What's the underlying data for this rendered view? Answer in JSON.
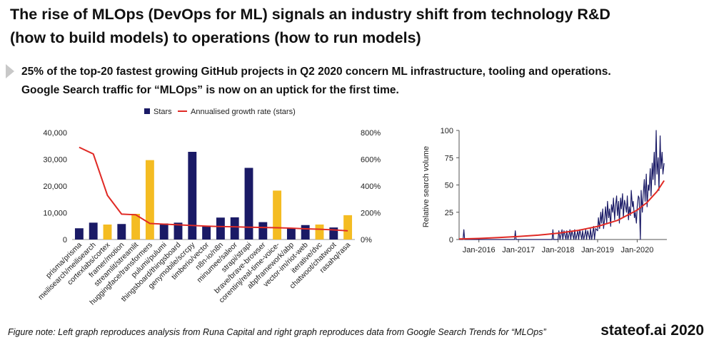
{
  "title": {
    "line1": "The rise of MLOps (DevOps for ML) signals an industry shift from technology R&D",
    "line2": "(how to build models) to operations (how to run models)"
  },
  "bullet": {
    "line1": "25% of the top-20 fastest growing GitHub projects in Q2 2020 concern ML infrastructure, tooling and operations.",
    "line2": "Google Search traffic for “MLOps” is now on an uptick for the first time."
  },
  "footnote": "Figure note: Left graph reproduces analysis from Runa Capital and right graph reproduces data from Google Search Trends for “MLOps”",
  "brand": "stateof.ai 2020",
  "colors": {
    "navy": "#1a1a66",
    "gold": "#f4bc22",
    "red": "#e02a25",
    "axis": "#999999",
    "text": "#222222"
  },
  "chart_data": [
    {
      "type": "bar",
      "title": "",
      "legend": {
        "position": "top",
        "stars_label": "Stars",
        "growth_label": "Annualised growth rate (stars)"
      },
      "categories": [
        "prisma/prisma",
        "meilisearch/meilisearch",
        "cortexlabs/cortex",
        "framer/motion",
        "streamlit/streamlit",
        "huggingface/transformers",
        "pulumi/pulumi",
        "thingsboard/thingsboard",
        "genymobile/scrcpy",
        "timberio/vector",
        "n8n-io/n8n",
        "minumee/saleor",
        "strapi/strapi",
        "brave/brave-browser",
        "corentinj/real-time-voice-",
        "abpframework/abp",
        "vector-im/riot-web",
        "iterative/dvc",
        "chatwoot/chatwoot",
        "rasahq/rasa"
      ],
      "series": [
        {
          "name": "Stars",
          "axis": "left",
          "values": [
            4200,
            6300,
            5600,
            5800,
            9600,
            29700,
            6000,
            6300,
            32800,
            4800,
            8200,
            8300,
            26800,
            6500,
            18300,
            4200,
            5400,
            5600,
            4500,
            9100
          ],
          "ml_related": [
            false,
            false,
            true,
            false,
            true,
            true,
            false,
            false,
            false,
            false,
            false,
            false,
            false,
            false,
            true,
            false,
            false,
            true,
            false,
            true
          ]
        },
        {
          "name": "Annualised growth rate (stars)",
          "axis": "right",
          "values": [
            690,
            640,
            330,
            190,
            185,
            120,
            115,
            110,
            105,
            100,
            97,
            95,
            92,
            90,
            88,
            85,
            80,
            77,
            72,
            65
          ]
        }
      ],
      "ylim_left": [
        0,
        40000
      ],
      "yticks_left": [
        0,
        10000,
        20000,
        30000,
        40000
      ],
      "yticks_left_labels": [
        "0",
        "10,000",
        "20,000",
        "30,000",
        "40,000"
      ],
      "ylim_right": [
        0,
        800
      ],
      "yticks_right": [
        0,
        200,
        400,
        600,
        800
      ],
      "yticks_right_labels": [
        "0%",
        "200%",
        "400%",
        "600%",
        "800%"
      ],
      "xlabel": "",
      "ylabel": "",
      "grid": false
    },
    {
      "type": "line",
      "title": "",
      "ylabel": "Relative search volume",
      "xlabel": "",
      "ylim": [
        0,
        100
      ],
      "yticks": [
        0,
        25,
        50,
        75,
        100
      ],
      "xlim": [
        2015.5,
        2020.75
      ],
      "xticks": [
        2016,
        2017,
        2018,
        2019,
        2020
      ],
      "xtick_labels": [
        "Jan-2016",
        "Jan-2017",
        "Jan-2018",
        "Jan-2019",
        "Jan-2020"
      ],
      "series": [
        {
          "name": "Search volume",
          "x": [
            2015.5,
            2015.6,
            2015.62,
            2015.64,
            2015.7,
            2016.0,
            2016.5,
            2016.9,
            2016.92,
            2016.94,
            2017.3,
            2017.85,
            2017.87,
            2017.89,
            2018.0,
            2018.02,
            2018.05,
            2018.1,
            2018.12,
            2018.15,
            2018.2,
            2018.22,
            2018.25,
            2018.3,
            2018.32,
            2018.35,
            2018.4,
            2018.42,
            2018.45,
            2018.5,
            2018.52,
            2018.55,
            2018.6,
            2018.62,
            2018.65,
            2018.7,
            2018.72,
            2018.75,
            2018.8,
            2018.82,
            2018.85,
            2018.9,
            2018.92,
            2018.95,
            2019.0,
            2019.02,
            2019.05,
            2019.08,
            2019.1,
            2019.13,
            2019.15,
            2019.18,
            2019.2,
            2019.23,
            2019.25,
            2019.28,
            2019.3,
            2019.33,
            2019.35,
            2019.38,
            2019.4,
            2019.43,
            2019.45,
            2019.48,
            2019.5,
            2019.53,
            2019.55,
            2019.58,
            2019.6,
            2019.63,
            2019.65,
            2019.68,
            2019.7,
            2019.73,
            2019.75,
            2019.78,
            2019.8,
            2019.83,
            2019.85,
            2019.88,
            2019.9,
            2019.93,
            2019.95,
            2019.98,
            2020.0,
            2020.03,
            2020.05,
            2020.08,
            2020.1,
            2020.13,
            2020.15,
            2020.18,
            2020.2,
            2020.23,
            2020.25,
            2020.28,
            2020.3,
            2020.33,
            2020.35,
            2020.38,
            2020.4,
            2020.43,
            2020.45,
            2020.48,
            2020.5,
            2020.53,
            2020.55,
            2020.58,
            2020.6,
            2020.63,
            2020.65,
            2020.68
          ],
          "y": [
            0,
            0,
            9,
            0,
            0,
            0,
            0,
            0,
            8,
            0,
            0,
            0,
            9,
            0,
            0,
            8,
            0,
            9,
            0,
            8,
            0,
            8,
            0,
            9,
            0,
            8,
            0,
            9,
            0,
            8,
            0,
            9,
            0,
            8,
            0,
            9,
            0,
            8,
            0,
            10,
            0,
            12,
            0,
            10,
            8,
            20,
            10,
            25,
            15,
            28,
            10,
            20,
            30,
            15,
            35,
            20,
            28,
            12,
            32,
            25,
            38,
            18,
            30,
            40,
            22,
            35,
            15,
            38,
            28,
            42,
            20,
            36,
            32,
            25,
            40,
            18,
            30,
            22,
            45,
            30,
            35,
            20,
            25,
            15,
            30,
            40,
            38,
            0,
            45,
            25,
            40,
            55,
            35,
            60,
            30,
            50,
            45,
            65,
            40,
            70,
            55,
            80,
            50,
            100,
            60,
            75,
            45,
            95,
            65,
            80,
            60,
            70
          ]
        },
        {
          "name": "Trend",
          "x": [
            2015.5,
            2016.0,
            2016.5,
            2017.0,
            2017.5,
            2018.0,
            2018.5,
            2019.0,
            2019.5,
            2020.0,
            2020.25,
            2020.5,
            2020.68
          ],
          "y": [
            0.5,
            1.0,
            1.8,
            2.8,
            4.0,
            5.8,
            8.3,
            12.0,
            17.5,
            27.0,
            34.0,
            44.0,
            54.0
          ]
        }
      ],
      "grid": false
    }
  ]
}
